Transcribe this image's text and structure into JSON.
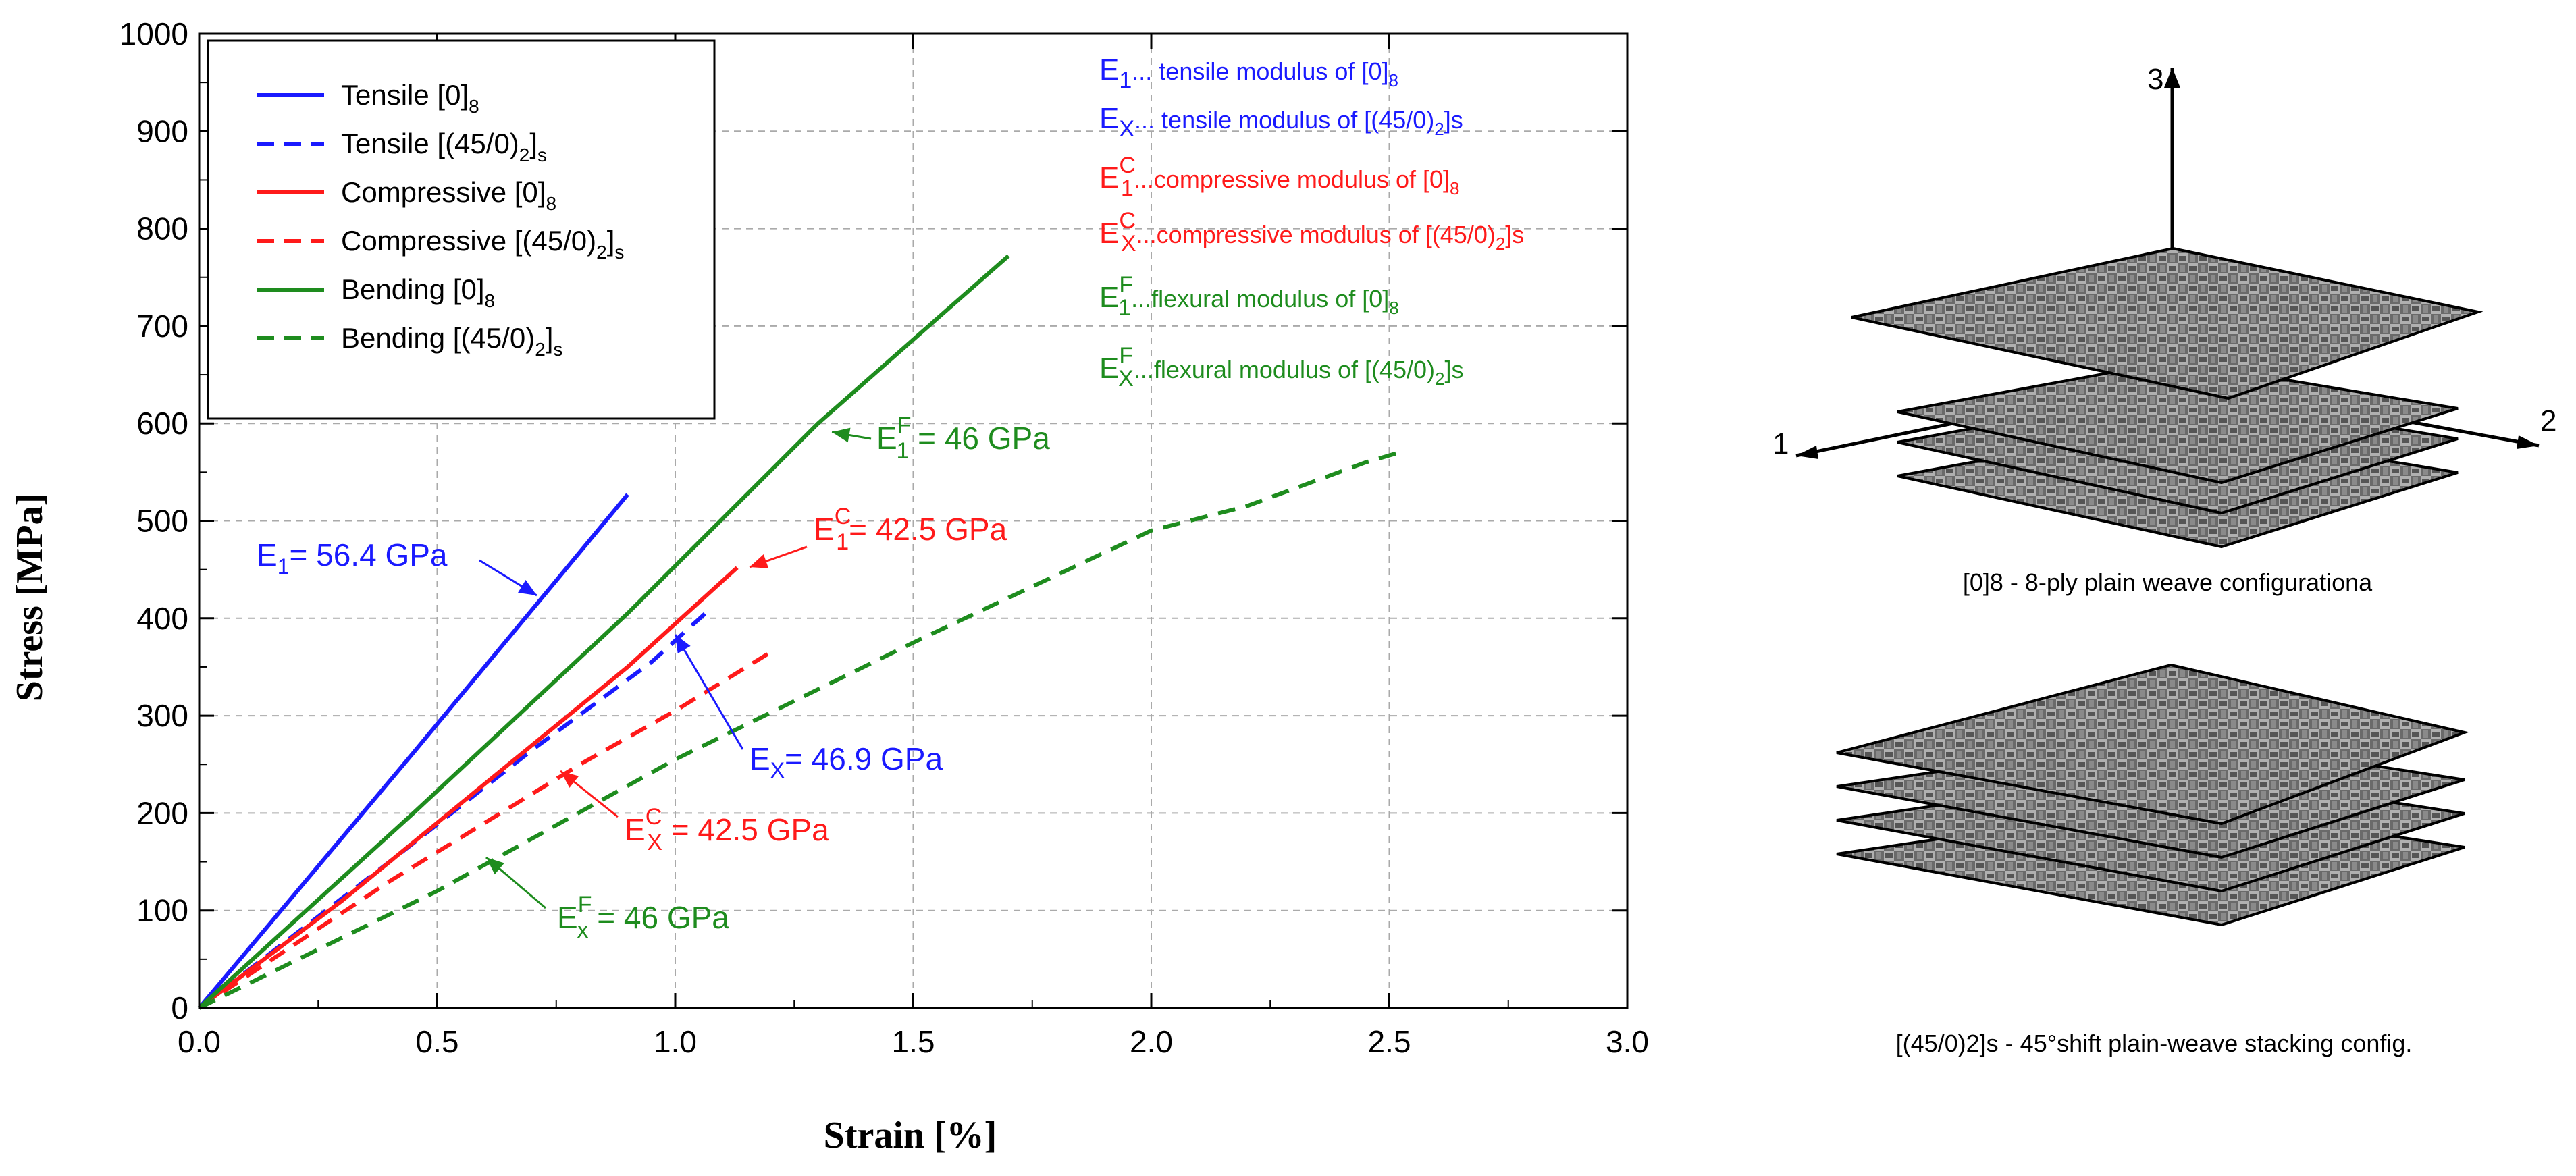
{
  "colors": {
    "blue": "#1a1aff",
    "red": "#ff1a1a",
    "green": "#1e8c1e"
  },
  "chart_data": {
    "type": "line",
    "xlabel": "Strain [%]",
    "ylabel": "Stress [MPa]",
    "xlim": [
      0,
      3.0
    ],
    "ylim": [
      0,
      1000
    ],
    "xticks": [
      "0.0",
      "0.5",
      "1.0",
      "1.5",
      "2.0",
      "2.5",
      "3.0"
    ],
    "yticks": [
      "0",
      "100",
      "200",
      "300",
      "400",
      "500",
      "600",
      "700",
      "800",
      "900",
      "1000"
    ],
    "grid": true,
    "legend_position": "top-left",
    "legend": [
      {
        "base": "Tensile [0]",
        "sub": "8",
        "tail": "",
        "color": "blue",
        "dash": false
      },
      {
        "base": "Tensile [(45/0)",
        "sub": "2",
        "tail": "]",
        "sub2": "s",
        "color": "blue",
        "dash": true
      },
      {
        "base": "Compressive [0]",
        "sub": "8",
        "tail": "",
        "color": "red",
        "dash": false
      },
      {
        "base": "Compressive [(45/0)",
        "sub": "2",
        "tail": "]",
        "sub2": "s",
        "color": "red",
        "dash": true
      },
      {
        "base": "Bending [0]",
        "sub": "8",
        "tail": "",
        "color": "green",
        "dash": false
      },
      {
        "base": "Bending [(45/0)",
        "sub": "2",
        "tail": "]",
        "sub2": "s",
        "color": "green",
        "dash": true
      }
    ],
    "series": [
      {
        "name": "Tensile [0]8",
        "color": "blue",
        "dash": false,
        "points": [
          [
            0,
            0
          ],
          [
            0.45,
            262
          ],
          [
            0.9,
            527
          ]
        ]
      },
      {
        "name": "Tensile [(45/0)2]s",
        "color": "blue",
        "dash": true,
        "points": [
          [
            0,
            0
          ],
          [
            0.4,
            150
          ],
          [
            0.7,
            265
          ],
          [
            0.95,
            355
          ],
          [
            1.07,
            408
          ]
        ]
      },
      {
        "name": "Compressive [0]8",
        "color": "red",
        "dash": false,
        "points": [
          [
            0,
            0
          ],
          [
            0.3,
            110
          ],
          [
            0.6,
            230
          ],
          [
            0.9,
            350
          ],
          [
            1.13,
            452
          ]
        ]
      },
      {
        "name": "Compressive [(45/0)2]s",
        "color": "red",
        "dash": true,
        "points": [
          [
            0,
            0
          ],
          [
            0.4,
            130
          ],
          [
            0.8,
            250
          ],
          [
            1.0,
            305
          ],
          [
            1.21,
            368
          ]
        ]
      },
      {
        "name": "Bending [0]8",
        "color": "green",
        "dash": false,
        "points": [
          [
            0,
            0
          ],
          [
            0.45,
            200
          ],
          [
            0.9,
            405
          ],
          [
            1.3,
            600
          ],
          [
            1.7,
            772
          ]
        ]
      },
      {
        "name": "Bending [(45/0)2]s",
        "color": "green",
        "dash": true,
        "points": [
          [
            0,
            0
          ],
          [
            0.5,
            120
          ],
          [
            1.0,
            255
          ],
          [
            1.5,
            375
          ],
          [
            2.0,
            490
          ],
          [
            2.2,
            515
          ],
          [
            2.45,
            560
          ],
          [
            2.52,
            570
          ]
        ]
      }
    ],
    "notes": [
      {
        "pre": "E",
        "sub": "1",
        "sup": "",
        "text": "... tensile modulus of [0]",
        "sub2": "8",
        "tail": "",
        "color": "blue"
      },
      {
        "pre": "E",
        "sub": "X",
        "sup": "",
        "text": "... tensile modulus of [(45/0)",
        "sub2": "2",
        "tail": "]s",
        "color": "blue"
      },
      {
        "pre": "E",
        "sub": "1",
        "sup": "C",
        "text": "...compressive modulus of [0]",
        "sub2": "8",
        "tail": "",
        "color": "red"
      },
      {
        "pre": "E",
        "sub": "X",
        "sup": "C",
        "text": "...compressive modulus of [(45/0)",
        "sub2": "2",
        "tail": "]s",
        "color": "red"
      },
      {
        "pre": "E",
        "sub": "1",
        "sup": "F",
        "text": "...flexural modulus of [0]",
        "sub2": "8",
        "tail": "",
        "color": "green"
      },
      {
        "pre": "E",
        "sub": "X",
        "sup": "F",
        "text": "...flexural modulus of [(45/0)",
        "sub2": "2",
        "tail": "]s",
        "color": "green"
      }
    ],
    "annotations": [
      {
        "pre": "E",
        "sub": "1",
        "sup": "",
        "text": "= 56.4 GPa",
        "color": "blue"
      },
      {
        "pre": "E",
        "sub": "1",
        "sup": "F",
        "text": " = 46 GPa",
        "color": "green"
      },
      {
        "pre": "E",
        "sub": "1",
        "sup": "C",
        "text": "= 42.5 GPa",
        "color": "red"
      },
      {
        "pre": "E",
        "sub": "X",
        "sup": "",
        "text": "= 46.9 GPa",
        "color": "blue"
      },
      {
        "pre": "E",
        "sub": "X",
        "sup": "C",
        "text": " = 42.5 GPa",
        "color": "red"
      },
      {
        "pre": "E",
        "sub": "x",
        "sup": "F",
        "text": " = 46 GPa",
        "color": "green"
      }
    ]
  },
  "diagrams": {
    "axis_labels": {
      "one": "1",
      "two": "2",
      "three": "3"
    },
    "caption_top": "[0]8 - 8-ply plain weave configurationa",
    "caption_bottom": "[(45/0)2]s - 45°shift plain-weave stacking config."
  }
}
